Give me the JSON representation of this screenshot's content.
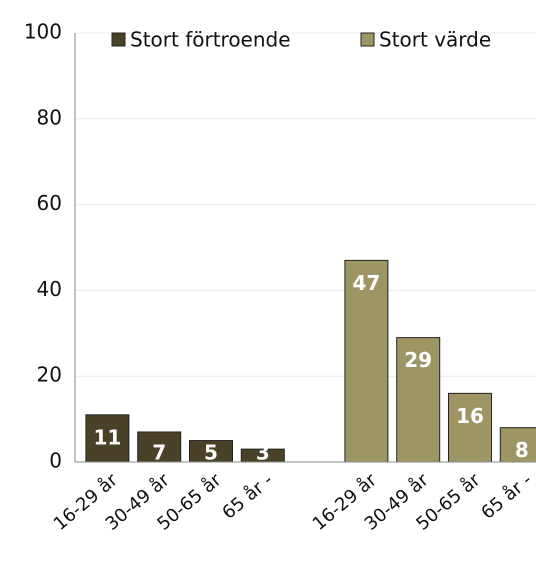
{
  "chart_data": {
    "type": "bar",
    "categories": [
      "16-29 år",
      "30-49 år",
      "50-65 år",
      "65 år -",
      null,
      "16-29 år",
      "30-49 år",
      "50-65 år",
      "65 år -"
    ],
    "series": [
      {
        "name": "Stort förtroende",
        "color": "#4a4228",
        "values": [
          11,
          7,
          5,
          3,
          null,
          null,
          null,
          null,
          null
        ]
      },
      {
        "name": "Stort värde",
        "color": "#9e9565",
        "values": [
          null,
          null,
          null,
          null,
          null,
          47,
          29,
          16,
          8
        ]
      }
    ],
    "ylim": [
      0,
      100
    ],
    "yticks": [
      0,
      20,
      40,
      60,
      80,
      100
    ],
    "grid": true,
    "legend": "top"
  }
}
